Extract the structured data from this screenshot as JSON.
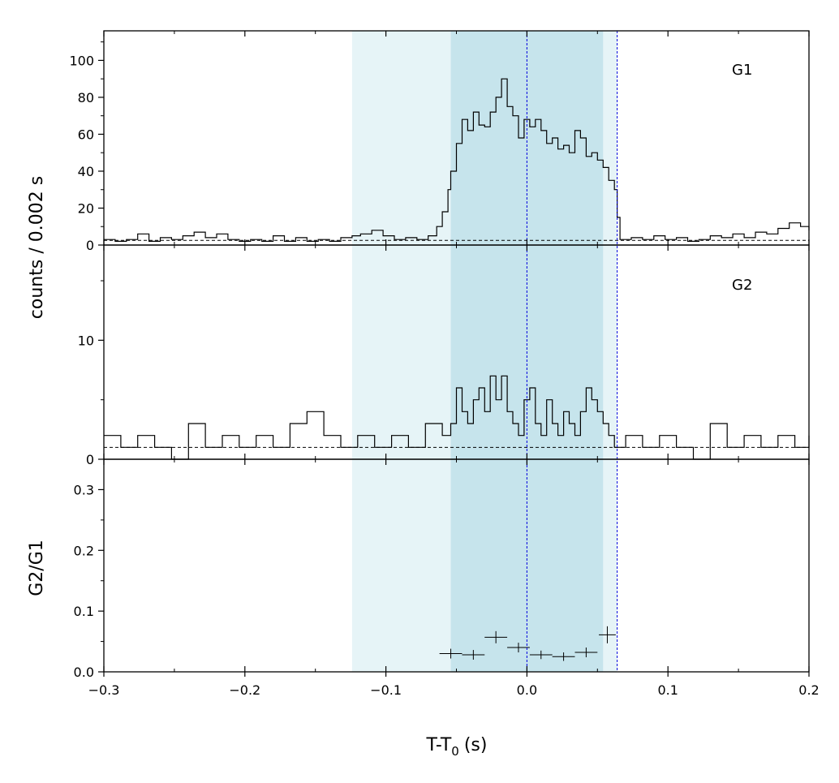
{
  "chart_data": {
    "type": "line",
    "xlabel": "T-T",
    "xlabel_sub": "0",
    "xlabel_unit": "(s)",
    "ylabel_shared": "counts /  0.002 s",
    "xlim": [
      -0.3,
      0.2
    ],
    "xticks": [
      "−0.3",
      "−0.2",
      "−0.1",
      "0.0",
      "0.1",
      "0.2"
    ],
    "xtick_values": [
      -0.3,
      -0.2,
      -0.1,
      0.0,
      0.1,
      0.2
    ],
    "shaded_regions": [
      {
        "from": -0.124,
        "to": 0.064,
        "color": "#e6f4f7"
      },
      {
        "from": -0.054,
        "to": 0.054,
        "color": "#c6e4ec"
      }
    ],
    "vlines": [
      {
        "x": 0.0,
        "color": "#0000dd",
        "style": "dashed"
      },
      {
        "x": 0.064,
        "color": "#0000dd",
        "style": "dashed"
      }
    ],
    "panels": [
      {
        "name": "G1",
        "label": "G1",
        "ylim": [
          0,
          116
        ],
        "yticks": [
          "0",
          "20",
          "40",
          "60",
          "80",
          "100"
        ],
        "ytick_values": [
          0,
          20,
          40,
          60,
          80,
          100
        ],
        "background": 2.5,
        "bin_width": 0.002,
        "points": [
          [
            -0.3,
            3
          ],
          [
            -0.292,
            2
          ],
          [
            -0.284,
            3
          ],
          [
            -0.276,
            6
          ],
          [
            -0.268,
            2
          ],
          [
            -0.26,
            4
          ],
          [
            -0.252,
            3
          ],
          [
            -0.244,
            5
          ],
          [
            -0.236,
            7
          ],
          [
            -0.228,
            4
          ],
          [
            -0.22,
            6
          ],
          [
            -0.212,
            3
          ],
          [
            -0.204,
            2
          ],
          [
            -0.196,
            3
          ],
          [
            -0.188,
            2
          ],
          [
            -0.18,
            5
          ],
          [
            -0.172,
            2
          ],
          [
            -0.164,
            4
          ],
          [
            -0.156,
            2
          ],
          [
            -0.148,
            3
          ],
          [
            -0.14,
            2
          ],
          [
            -0.132,
            4
          ],
          [
            -0.124,
            5
          ],
          [
            -0.118,
            6
          ],
          [
            -0.11,
            8
          ],
          [
            -0.102,
            5
          ],
          [
            -0.094,
            3
          ],
          [
            -0.086,
            4
          ],
          [
            -0.078,
            3
          ],
          [
            -0.07,
            5
          ],
          [
            -0.064,
            10
          ],
          [
            -0.06,
            18
          ],
          [
            -0.056,
            30
          ],
          [
            -0.054,
            40
          ],
          [
            -0.05,
            55
          ],
          [
            -0.046,
            68
          ],
          [
            -0.042,
            62
          ],
          [
            -0.038,
            72
          ],
          [
            -0.034,
            65
          ],
          [
            -0.03,
            64
          ],
          [
            -0.026,
            72
          ],
          [
            -0.022,
            80
          ],
          [
            -0.018,
            90
          ],
          [
            -0.014,
            75
          ],
          [
            -0.01,
            70
          ],
          [
            -0.006,
            58
          ],
          [
            -0.002,
            68
          ],
          [
            0.002,
            64
          ],
          [
            0.006,
            68
          ],
          [
            0.01,
            62
          ],
          [
            0.014,
            55
          ],
          [
            0.018,
            58
          ],
          [
            0.022,
            52
          ],
          [
            0.026,
            54
          ],
          [
            0.03,
            50
          ],
          [
            0.034,
            62
          ],
          [
            0.038,
            58
          ],
          [
            0.042,
            48
          ],
          [
            0.046,
            50
          ],
          [
            0.05,
            46
          ],
          [
            0.054,
            42
          ],
          [
            0.058,
            35
          ],
          [
            0.062,
            30
          ],
          [
            0.064,
            15
          ],
          [
            0.066,
            3
          ],
          [
            0.074,
            4
          ],
          [
            0.082,
            3
          ],
          [
            0.09,
            5
          ],
          [
            0.098,
            3
          ],
          [
            0.106,
            4
          ],
          [
            0.114,
            2
          ],
          [
            0.122,
            3
          ],
          [
            0.13,
            5
          ],
          [
            0.138,
            4
          ],
          [
            0.146,
            6
          ],
          [
            0.154,
            4
          ],
          [
            0.162,
            7
          ],
          [
            0.17,
            6
          ],
          [
            0.178,
            9
          ],
          [
            0.186,
            12
          ],
          [
            0.194,
            10
          ],
          [
            0.2,
            8
          ]
        ]
      },
      {
        "name": "G2",
        "label": "G2",
        "ylim": [
          0,
          18
        ],
        "yticks": [
          "0",
          "10"
        ],
        "ytick_values": [
          0,
          10
        ],
        "background": 1.0,
        "bin_width": 0.002,
        "points": [
          [
            -0.3,
            2
          ],
          [
            -0.288,
            1
          ],
          [
            -0.276,
            2
          ],
          [
            -0.264,
            1
          ],
          [
            -0.252,
            0
          ],
          [
            -0.24,
            3
          ],
          [
            -0.228,
            1
          ],
          [
            -0.216,
            2
          ],
          [
            -0.204,
            1
          ],
          [
            -0.192,
            2
          ],
          [
            -0.18,
            1
          ],
          [
            -0.168,
            3
          ],
          [
            -0.156,
            4
          ],
          [
            -0.144,
            2
          ],
          [
            -0.132,
            1
          ],
          [
            -0.12,
            2
          ],
          [
            -0.108,
            1
          ],
          [
            -0.096,
            2
          ],
          [
            -0.084,
            1
          ],
          [
            -0.072,
            3
          ],
          [
            -0.06,
            2
          ],
          [
            -0.054,
            3
          ],
          [
            -0.05,
            6
          ],
          [
            -0.046,
            4
          ],
          [
            -0.042,
            3
          ],
          [
            -0.038,
            5
          ],
          [
            -0.034,
            6
          ],
          [
            -0.03,
            4
          ],
          [
            -0.026,
            7
          ],
          [
            -0.022,
            5
          ],
          [
            -0.018,
            7
          ],
          [
            -0.014,
            4
          ],
          [
            -0.01,
            3
          ],
          [
            -0.006,
            2
          ],
          [
            -0.002,
            5
          ],
          [
            0.002,
            6
          ],
          [
            0.006,
            3
          ],
          [
            0.01,
            2
          ],
          [
            0.014,
            5
          ],
          [
            0.018,
            3
          ],
          [
            0.022,
            2
          ],
          [
            0.026,
            4
          ],
          [
            0.03,
            3
          ],
          [
            0.034,
            2
          ],
          [
            0.038,
            4
          ],
          [
            0.042,
            6
          ],
          [
            0.046,
            5
          ],
          [
            0.05,
            4
          ],
          [
            0.054,
            3
          ],
          [
            0.058,
            2
          ],
          [
            0.062,
            1
          ],
          [
            0.07,
            2
          ],
          [
            0.082,
            1
          ],
          [
            0.094,
            2
          ],
          [
            0.106,
            1
          ],
          [
            0.118,
            0
          ],
          [
            0.13,
            3
          ],
          [
            0.142,
            1
          ],
          [
            0.154,
            2
          ],
          [
            0.166,
            1
          ],
          [
            0.178,
            2
          ],
          [
            0.19,
            1
          ],
          [
            0.2,
            2
          ]
        ]
      },
      {
        "name": "G2/G1",
        "label": "",
        "ylabel": "G2/G1",
        "ylim": [
          0,
          0.35
        ],
        "yticks": [
          "0.0",
          "0.1",
          "0.2",
          "0.3"
        ],
        "ytick_values": [
          0,
          0.1,
          0.2,
          0.3
        ],
        "ratio_points": [
          {
            "x": -0.054,
            "xerr": 0.008,
            "y": 0.03,
            "yerr": 0.008
          },
          {
            "x": -0.038,
            "xerr": 0.008,
            "y": 0.028,
            "yerr": 0.008
          },
          {
            "x": -0.022,
            "xerr": 0.008,
            "y": 0.057,
            "yerr": 0.01
          },
          {
            "x": -0.006,
            "xerr": 0.008,
            "y": 0.04,
            "yerr": 0.008
          },
          {
            "x": 0.01,
            "xerr": 0.008,
            "y": 0.028,
            "yerr": 0.007
          },
          {
            "x": 0.026,
            "xerr": 0.008,
            "y": 0.025,
            "yerr": 0.007
          },
          {
            "x": 0.042,
            "xerr": 0.008,
            "y": 0.032,
            "yerr": 0.008
          },
          {
            "x": 0.057,
            "xerr": 0.006,
            "y": 0.061,
            "yerr": 0.014
          }
        ]
      }
    ]
  }
}
